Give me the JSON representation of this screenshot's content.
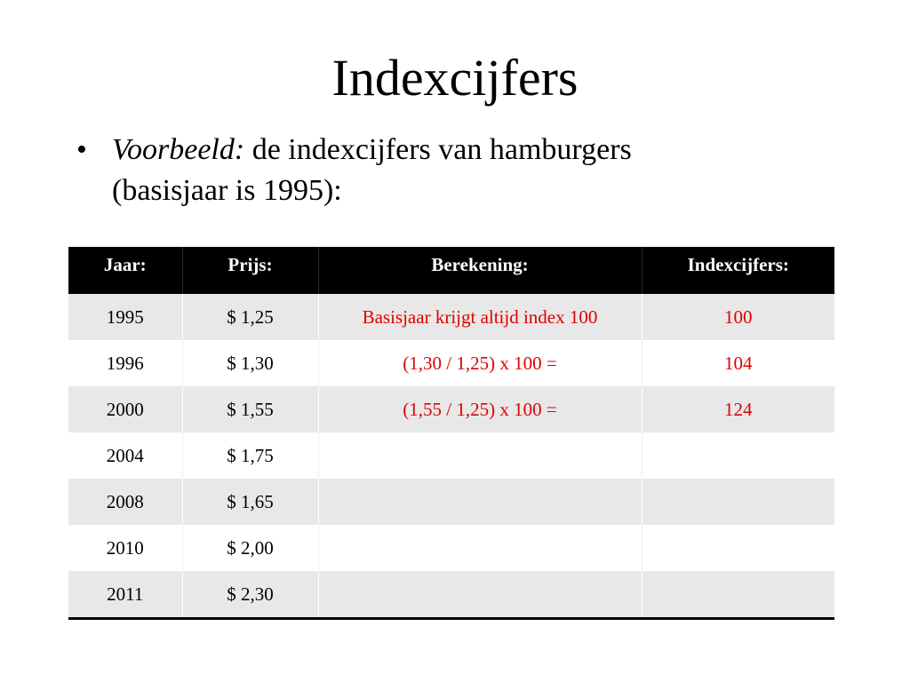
{
  "slide": {
    "title": "Indexcijfers",
    "bullet": {
      "marker": "•",
      "emphasis": "Voorbeeld:",
      "text": "de indexcijfers van hamburgers",
      "text_line2": "(basisjaar is 1995):"
    }
  },
  "table": {
    "headers": [
      "Jaar:",
      "Prijs:",
      "Berekening:",
      "Indexcijfers:"
    ],
    "rows": [
      {
        "jaar": "1995",
        "prijs": "$ 1,25",
        "berekening": "Basisjaar krijgt altijd index 100",
        "index": "100"
      },
      {
        "jaar": "1996",
        "prijs": "$ 1,30",
        "berekening": "(1,30 / 1,25) x 100 =",
        "index": "104"
      },
      {
        "jaar": "2000",
        "prijs": "$ 1,55",
        "berekening": "(1,55 / 1,25) x 100 =",
        "index": "124"
      },
      {
        "jaar": "2004",
        "prijs": "$ 1,75",
        "berekening": "",
        "index": ""
      },
      {
        "jaar": "2008",
        "prijs": "$ 1,65",
        "berekening": "",
        "index": ""
      },
      {
        "jaar": "2010",
        "prijs": "$ 2,00",
        "berekening": "",
        "index": ""
      },
      {
        "jaar": "2011",
        "prijs": "$ 2,30",
        "berekening": "",
        "index": ""
      }
    ],
    "colors": {
      "header_bg": "#000000",
      "header_text": "#ffffff",
      "row_alt_bg": "#e8e8e8",
      "highlight_text": "#e00000"
    }
  }
}
